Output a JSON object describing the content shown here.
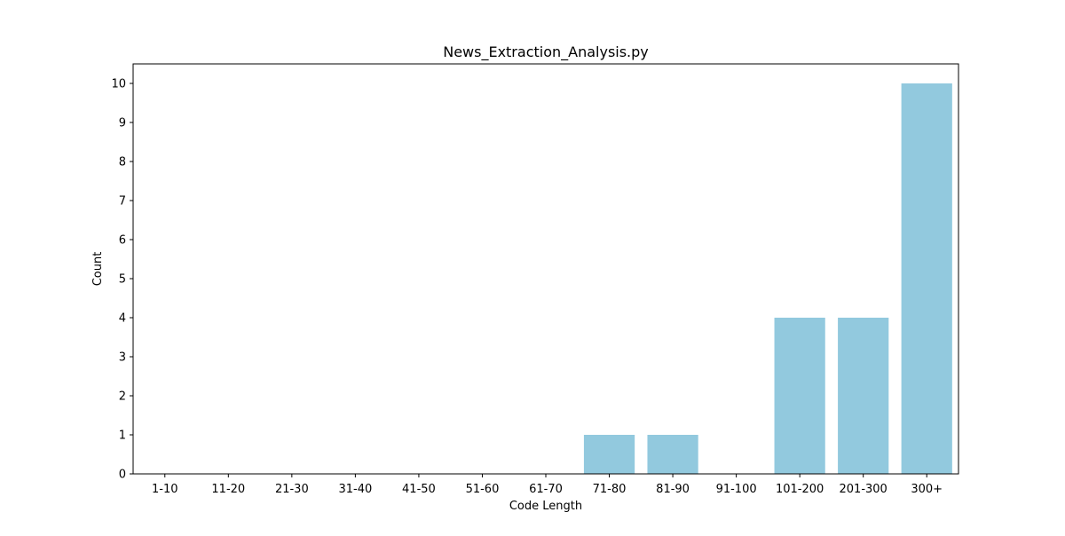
{
  "chart_data": {
    "type": "bar",
    "title": "News_Extraction_Analysis.py",
    "xlabel": "Code Length",
    "ylabel": "Count",
    "categories": [
      "1-10",
      "11-20",
      "21-30",
      "31-40",
      "41-50",
      "51-60",
      "61-70",
      "71-80",
      "81-90",
      "91-100",
      "101-200",
      "201-300",
      "300+"
    ],
    "values": [
      0,
      0,
      0,
      0,
      0,
      0,
      0,
      1,
      1,
      0,
      4,
      4,
      10
    ],
    "ylim": [
      0,
      10.5
    ],
    "yticks": [
      0,
      1,
      2,
      3,
      4,
      5,
      6,
      7,
      8,
      9,
      10
    ],
    "bar_color": "#92c9de",
    "grid": false,
    "legend": false
  }
}
